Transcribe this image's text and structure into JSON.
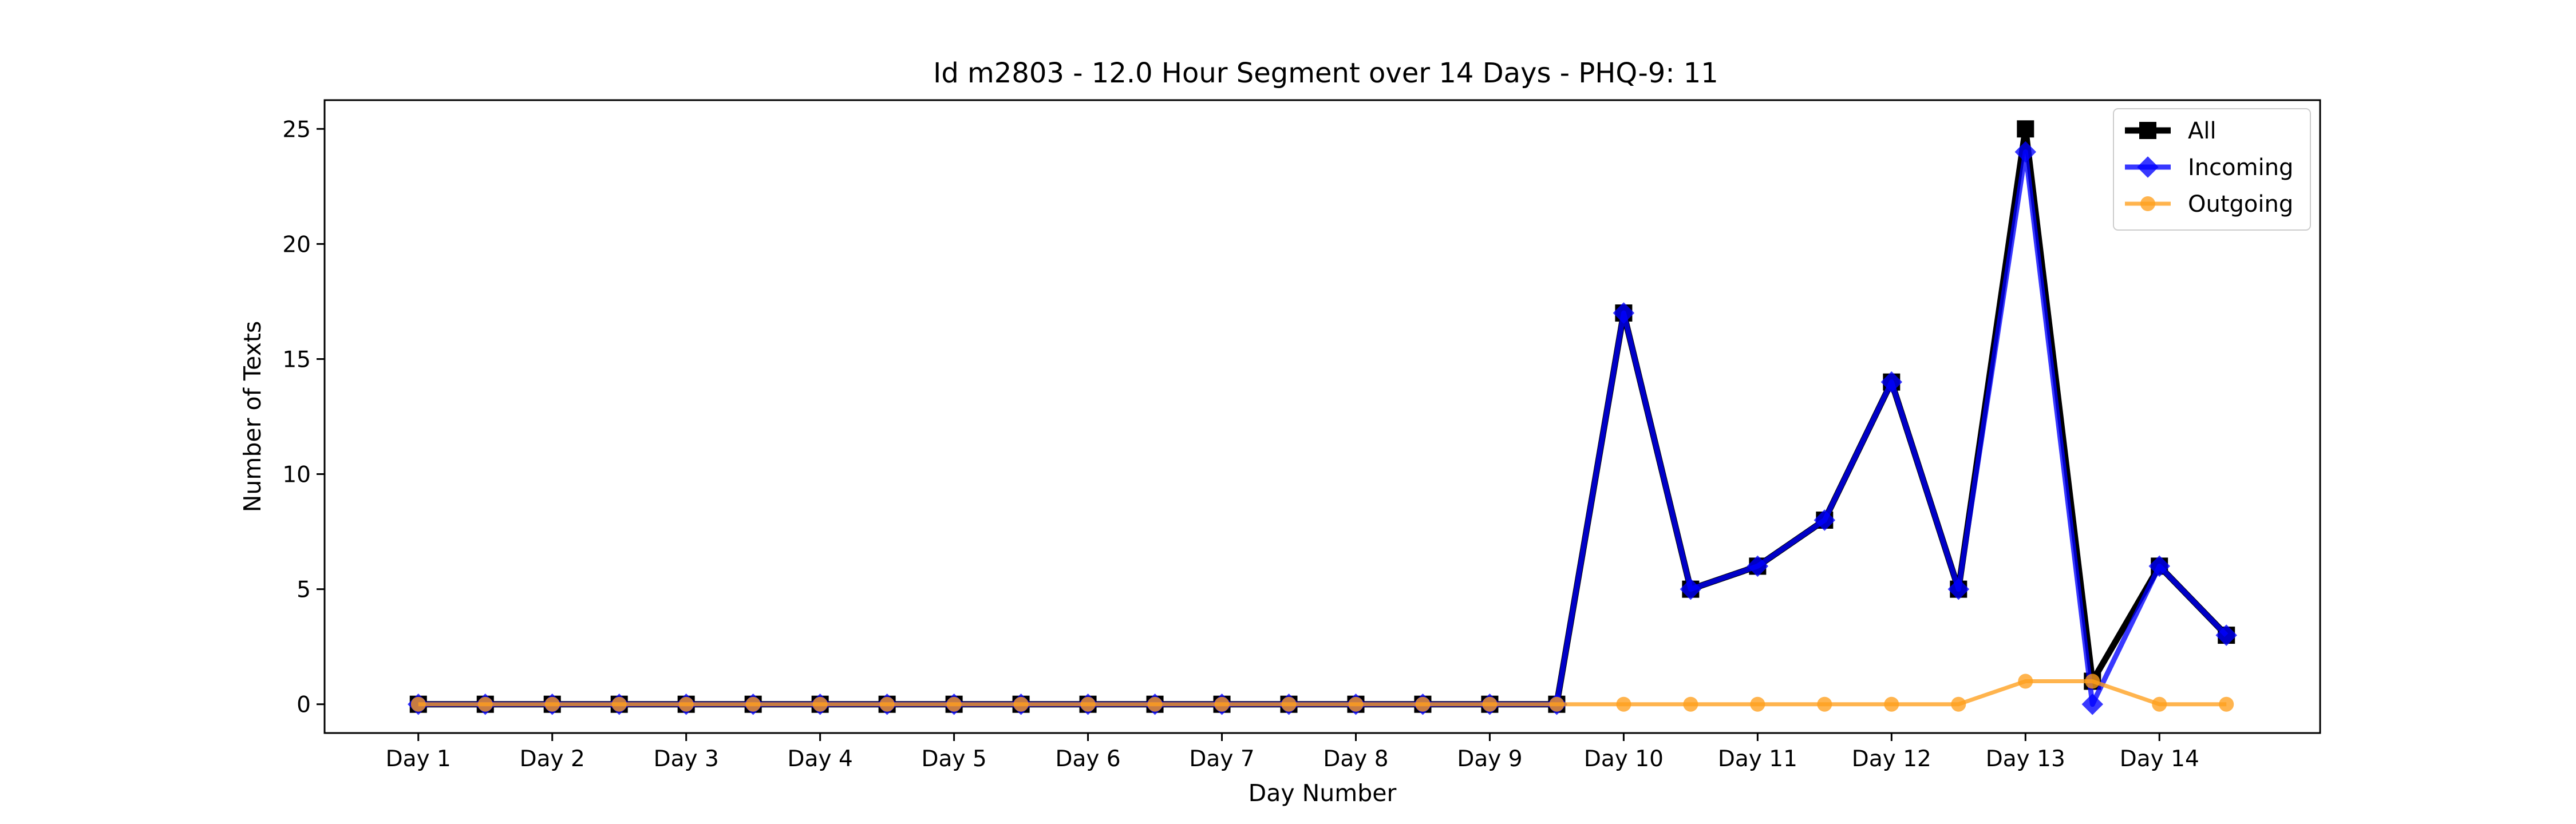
{
  "chart_data": {
    "type": "line",
    "title": "Id m2803 - 12.0 Hour Segment over 14 Days - PHQ-9: 11",
    "xlabel": "Day Number",
    "ylabel": "Number of Texts",
    "ylim": [
      -1.25,
      26.25
    ],
    "yticks": [
      0,
      5,
      10,
      15,
      20,
      25
    ],
    "xticks": [
      "Day 1",
      "Day 2",
      "Day 3",
      "Day 4",
      "Day 5",
      "Day 6",
      "Day 7",
      "Day 8",
      "Day 9",
      "Day 10",
      "Day 11",
      "Day 12",
      "Day 13",
      "Day 14"
    ],
    "x": [
      1,
      1.5,
      2,
      2.5,
      3,
      3.5,
      4,
      4.5,
      5,
      5.5,
      6,
      6.5,
      7,
      7.5,
      8,
      8.5,
      9,
      9.5,
      10,
      10.5,
      11,
      11.5,
      12,
      12.5,
      13,
      13.5,
      14,
      14.5
    ],
    "legend_position": "top-right",
    "grid": false,
    "series": [
      {
        "name": "All",
        "color": "#000000",
        "marker": "square",
        "values": [
          0,
          0,
          0,
          0,
          0,
          0,
          0,
          0,
          0,
          0,
          0,
          0,
          0,
          0,
          0,
          0,
          0,
          0,
          17,
          5,
          6,
          8,
          14,
          5,
          25,
          1,
          6,
          3
        ]
      },
      {
        "name": "Incoming",
        "color": "#0000ff",
        "marker": "diamond",
        "values": [
          0,
          0,
          0,
          0,
          0,
          0,
          0,
          0,
          0,
          0,
          0,
          0,
          0,
          0,
          0,
          0,
          0,
          0,
          17,
          5,
          6,
          8,
          14,
          5,
          24,
          0,
          6,
          3
        ]
      },
      {
        "name": "Outgoing",
        "color": "#ff9f1c",
        "marker": "circle",
        "values": [
          0,
          0,
          0,
          0,
          0,
          0,
          0,
          0,
          0,
          0,
          0,
          0,
          0,
          0,
          0,
          0,
          0,
          0,
          0,
          0,
          0,
          0,
          0,
          0,
          1,
          1,
          0,
          0
        ]
      }
    ]
  }
}
